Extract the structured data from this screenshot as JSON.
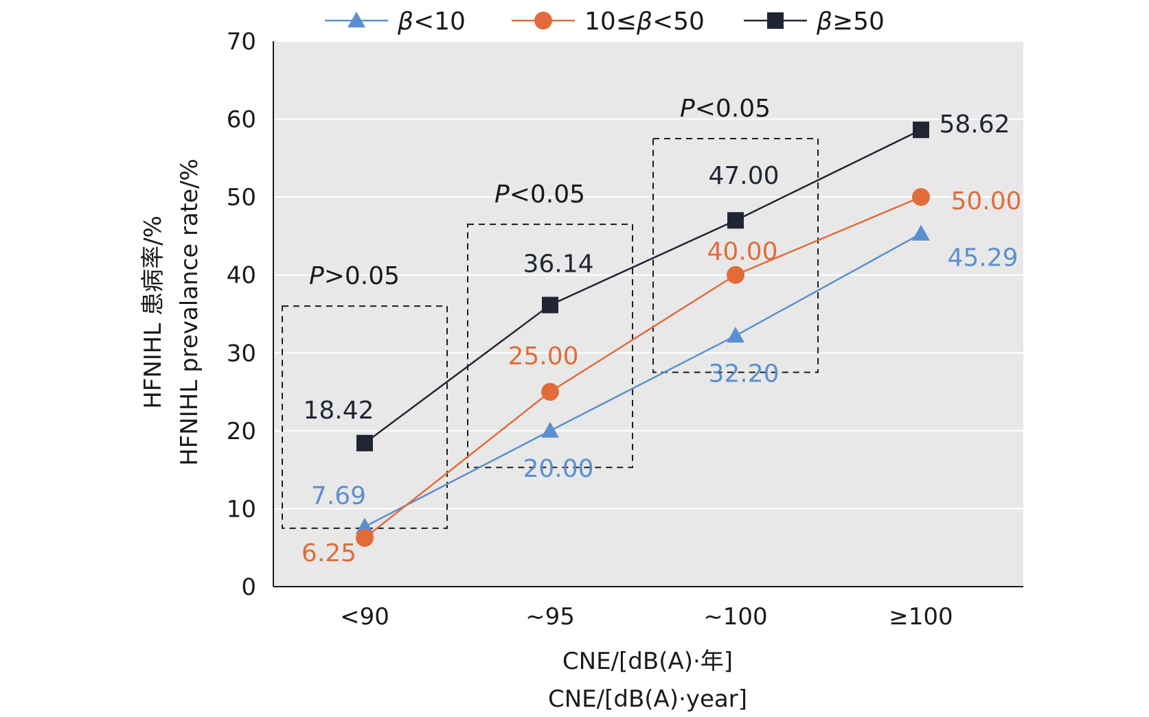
{
  "chart_data": {
    "type": "line",
    "categories": [
      "<90",
      "~95",
      "~100",
      "≥100"
    ],
    "ylim": [
      0,
      70
    ],
    "y_ticks": [
      "0",
      "10",
      "20",
      "30",
      "40",
      "50",
      "60",
      "70"
    ],
    "grid": true,
    "legend_position": "top",
    "ylabel_cn": "HFNIHL 患病率/%",
    "ylabel_en": "HFNIHL prevalance rate/%",
    "xlabel_cn": "CNE/[dB(A)·年]",
    "xlabel_en": "CNE/[dB(A)·year]",
    "series": [
      {
        "name": "β<10",
        "name_symbol": "β",
        "name_rest": "<10",
        "name_prefix": "",
        "color": "#5b8fd0",
        "marker": "triangle",
        "values": [
          7.69,
          20.0,
          32.2,
          45.29
        ],
        "labels": [
          "7.69",
          "20.00",
          "32.20",
          "45.29"
        ]
      },
      {
        "name": "10≤β<50",
        "name_prefix": "10≤",
        "name_symbol": "β",
        "name_rest": "<50",
        "color": "#e26b3a",
        "marker": "circle",
        "values": [
          6.25,
          25.0,
          40.0,
          50.0
        ],
        "labels": [
          "6.25",
          "25.00",
          "40.00",
          "50.00"
        ]
      },
      {
        "name": "β≥50",
        "name_prefix": "",
        "name_symbol": "β",
        "name_rest": "≥50",
        "color": "#1f2533",
        "marker": "square",
        "values": [
          18.42,
          36.14,
          47.0,
          58.62
        ],
        "labels": [
          "18.42",
          "36.14",
          "47.00",
          "58.62"
        ]
      }
    ],
    "annotations": [
      {
        "category_index": 0,
        "p_symbol": "P",
        "p_rest": ">0.05",
        "box_ylim": [
          7.5,
          36
        ]
      },
      {
        "category_index": 1,
        "p_symbol": "P",
        "p_rest": "<0.05",
        "box_ylim": [
          15.3,
          46.5
        ]
      },
      {
        "category_index": 2,
        "p_symbol": "P",
        "p_rest": "<0.05",
        "box_ylim": [
          27.5,
          57.5
        ]
      }
    ]
  }
}
